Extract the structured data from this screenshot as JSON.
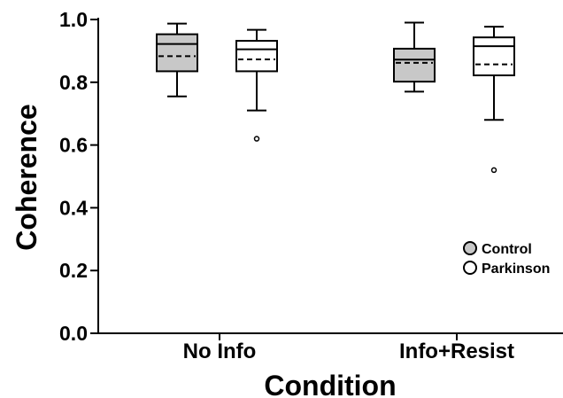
{
  "chart_data": {
    "type": "box",
    "xlabel": "Condition",
    "ylabel": "Coherence",
    "ylim": [
      0.0,
      1.0
    ],
    "yticks": [
      0.0,
      0.2,
      0.4,
      0.6,
      0.8,
      1.0
    ],
    "ytick_labels": [
      "0.0",
      "0.2",
      "0.4",
      "0.6",
      "0.8",
      "1.0"
    ],
    "categories": [
      "No Info",
      "Info+Resist"
    ],
    "grid": false,
    "legend_position": "right",
    "series": [
      {
        "name": "Control",
        "color": "#c8c8c8",
        "boxes": [
          {
            "whisker_low": 0.755,
            "q1": 0.835,
            "median": 0.922,
            "q3": 0.953,
            "whisker_high": 0.987,
            "mean": 0.883,
            "outliers": []
          },
          {
            "whisker_low": 0.77,
            "q1": 0.802,
            "median": 0.872,
            "q3": 0.907,
            "whisker_high": 0.99,
            "mean": 0.862,
            "outliers": []
          }
        ]
      },
      {
        "name": "Parkinson",
        "color": "#ffffff",
        "boxes": [
          {
            "whisker_low": 0.71,
            "q1": 0.835,
            "median": 0.905,
            "q3": 0.932,
            "whisker_high": 0.967,
            "mean": 0.873,
            "outliers": [
              0.62
            ]
          },
          {
            "whisker_low": 0.68,
            "q1": 0.822,
            "median": 0.915,
            "q3": 0.943,
            "whisker_high": 0.977,
            "mean": 0.857,
            "outliers": [
              0.52
            ]
          }
        ]
      }
    ],
    "legend": [
      {
        "label": "Control",
        "color": "#c8c8c8"
      },
      {
        "label": "Parkinson",
        "color": "#ffffff"
      }
    ]
  }
}
